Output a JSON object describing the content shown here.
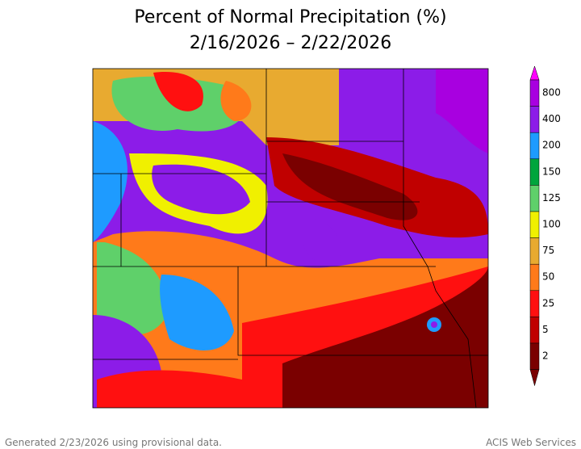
{
  "header": {
    "title": "Percent of Normal Precipitation (%)",
    "subtitle": "2/16/2026 – 2/22/2026"
  },
  "legend": {
    "top_color": "#ff00ff",
    "bottom_color": "#7a0000",
    "bins": [
      {
        "label": "800",
        "color": "#a800e0"
      },
      {
        "label": "400",
        "color": "#8c1ce8"
      },
      {
        "label": "200",
        "color": "#1e9bff"
      },
      {
        "label": "150",
        "color": "#00a53c"
      },
      {
        "label": "125",
        "color": "#5fd06a"
      },
      {
        "label": "100",
        "color": "#f0f000"
      },
      {
        "label": "75",
        "color": "#e8aa30"
      },
      {
        "label": "50",
        "color": "#ff7a1a"
      },
      {
        "label": "25",
        "color": "#ff1010"
      },
      {
        "label": "5",
        "color": "#c00000"
      },
      {
        "label": "2",
        "color": "#7a0000"
      }
    ]
  },
  "footer": {
    "left": "Generated 2/23/2026 using provisional data.",
    "right": "ACIS Web Services"
  }
}
